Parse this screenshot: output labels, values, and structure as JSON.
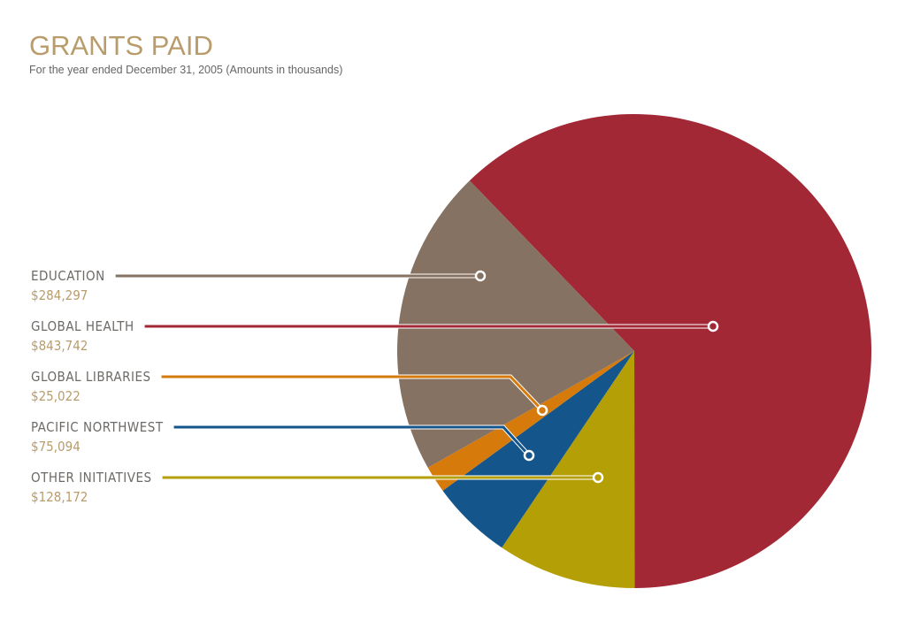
{
  "chart_data": {
    "type": "pie",
    "title": "GRANTS PAID",
    "subtitle": "For the year ended December 31, 2005 (Amounts in thousands)",
    "categories": [
      "EDUCATION",
      "GLOBAL HEALTH",
      "GLOBAL LIBRARIES",
      "PACIFIC NORTHWEST",
      "OTHER INITIATIVES"
    ],
    "values": [
      284297,
      843742,
      25022,
      75094,
      128172
    ],
    "value_labels": [
      "$284,297",
      "$843,742",
      "$25,022",
      "$75,094",
      "$128,172"
    ],
    "colors": [
      "#857262",
      "#a32836",
      "#d67a0c",
      "#14568c",
      "#b59f06"
    ]
  }
}
